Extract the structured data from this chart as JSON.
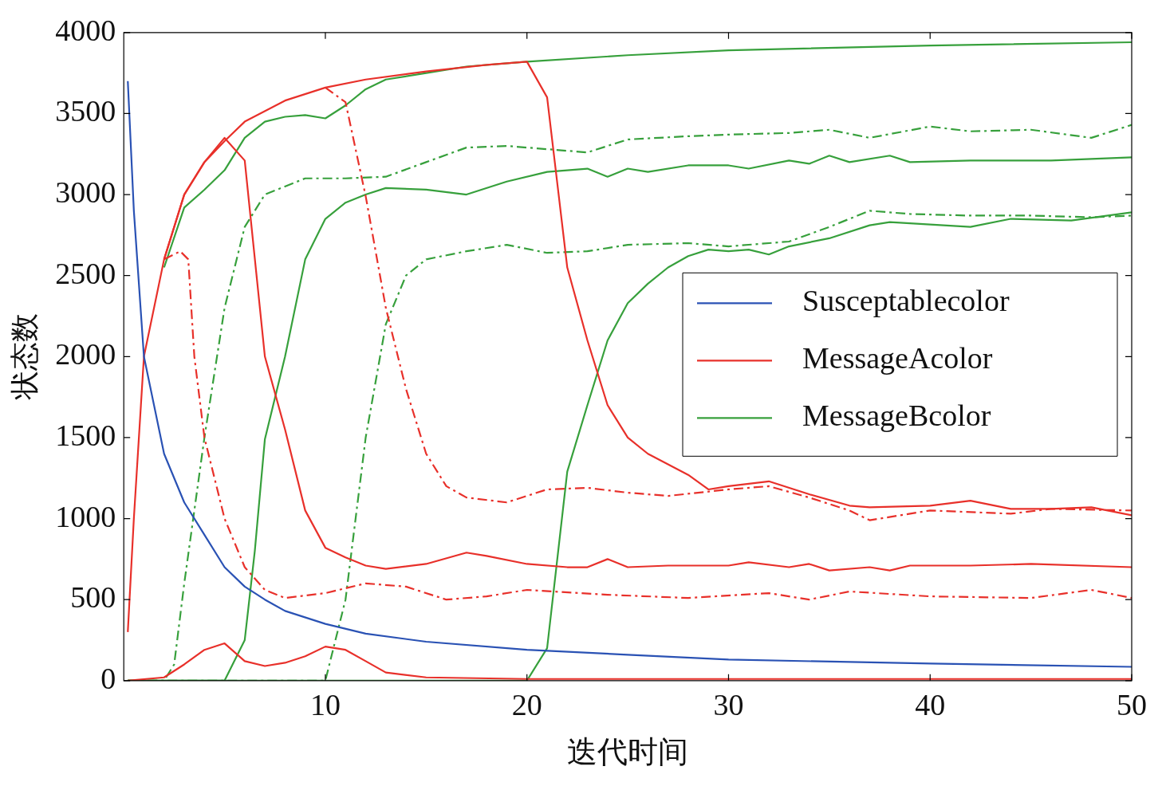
{
  "chart_data": {
    "type": "line",
    "xlabel": "迭代时间",
    "ylabel": "状态数",
    "xlim": [
      0,
      50
    ],
    "xticks": [
      10,
      20,
      30,
      40,
      50
    ],
    "ylim": [
      0,
      4000
    ],
    "yticks": [
      0,
      500,
      1000,
      1500,
      2000,
      2500,
      3000,
      3500,
      4000
    ],
    "grid": false,
    "legend": "right",
    "marker": "none",
    "series": [
      {
        "name": "Susceptablecolor",
        "color": "#2a52b4",
        "line_style": "solid",
        "x": [
          0.2,
          0.5,
          1,
          2,
          3,
          4,
          5,
          6,
          7,
          8,
          10,
          12,
          15,
          20,
          25,
          30,
          40,
          50
        ],
        "values": [
          3700,
          2900,
          2000,
          1400,
          1100,
          900,
          700,
          580,
          500,
          430,
          350,
          290,
          240,
          190,
          160,
          130,
          105,
          85
        ]
      },
      {
        "name": "MessageAcolor",
        "color": "#e8302a",
        "line_style": "solid",
        "x": [
          0.2,
          0.5,
          1,
          2,
          3,
          4,
          5,
          6,
          8,
          10,
          12,
          15,
          18,
          20,
          21,
          22,
          23,
          24,
          25,
          26,
          28,
          29,
          30,
          32,
          34,
          36,
          37,
          40,
          42,
          44,
          46,
          48,
          50
        ],
        "values": [
          300,
          1000,
          2000,
          2600,
          3000,
          3200,
          3330,
          3450,
          3580,
          3660,
          3710,
          3760,
          3800,
          3820,
          3600,
          2550,
          2100,
          1700,
          1500,
          1400,
          1270,
          1180,
          1200,
          1230,
          1150,
          1080,
          1070,
          1080,
          1110,
          1060,
          1060,
          1070,
          1020
        ]
      },
      {
        "color": "#e8302a",
        "line_style": "solid",
        "x": [
          2,
          3,
          4,
          5,
          6,
          7,
          8,
          9,
          10,
          11,
          12,
          13,
          15,
          17,
          18,
          20,
          22,
          23,
          24,
          25,
          27,
          30,
          31,
          33,
          34,
          35,
          37,
          38,
          39,
          42,
          45,
          50
        ],
        "values": [
          2600,
          3000,
          3200,
          3350,
          3210,
          2000,
          1550,
          1050,
          820,
          760,
          710,
          690,
          720,
          790,
          770,
          720,
          700,
          700,
          750,
          700,
          710,
          710,
          730,
          700,
          720,
          680,
          700,
          680,
          710,
          710,
          720,
          700
        ]
      },
      {
        "color": "#e8302a",
        "line_style": "solid",
        "x": [
          0.2,
          2,
          3,
          4,
          5,
          6,
          7,
          8,
          9,
          10,
          11,
          12,
          13,
          15,
          20,
          50
        ],
        "values": [
          0,
          20,
          100,
          190,
          230,
          120,
          90,
          110,
          150,
          210,
          190,
          120,
          50,
          20,
          10,
          10
        ]
      },
      {
        "color": "#e8302a",
        "line_style": "dashed",
        "x": [
          2,
          2.8,
          3.2,
          3.5,
          4,
          5,
          6,
          7,
          8,
          10,
          12,
          14,
          16,
          18,
          20,
          24,
          28,
          32,
          34,
          36,
          40,
          45,
          48,
          50
        ],
        "values": [
          2600,
          2650,
          2600,
          2000,
          1500,
          1000,
          700,
          560,
          510,
          540,
          600,
          580,
          500,
          520,
          560,
          530,
          510,
          540,
          500,
          550,
          520,
          510,
          560,
          510
        ]
      },
      {
        "color": "#e8302a",
        "line_style": "dashed",
        "x": [
          10,
          11,
          12,
          13,
          14,
          15,
          16,
          17,
          19,
          21,
          23,
          25,
          27,
          30,
          32,
          34,
          36,
          37,
          40,
          44,
          46,
          50
        ],
        "values": [
          3660,
          3570,
          2990,
          2300,
          1800,
          1400,
          1200,
          1130,
          1100,
          1180,
          1190,
          1160,
          1140,
          1180,
          1200,
          1130,
          1050,
          990,
          1050,
          1030,
          1060,
          1050
        ]
      },
      {
        "name": "MessageBcolor",
        "color": "#37a03c",
        "line_style": "solid",
        "x": [
          2,
          3,
          4,
          5,
          6,
          7,
          8,
          9,
          10,
          11,
          12,
          13,
          15,
          17,
          20,
          25,
          30,
          40,
          50
        ],
        "values": [
          2550,
          2920,
          3030,
          3150,
          3350,
          3450,
          3480,
          3490,
          3470,
          3550,
          3650,
          3710,
          3750,
          3790,
          3820,
          3860,
          3890,
          3920,
          3940
        ]
      },
      {
        "color": "#37a03c",
        "line_style": "solid",
        "x": [
          0.2,
          5,
          6,
          6.5,
          7,
          8,
          9,
          10,
          11,
          12,
          13,
          15,
          17,
          19,
          21,
          23,
          24,
          25,
          26,
          28,
          30,
          31,
          33,
          34,
          35,
          36,
          38,
          39,
          42,
          46,
          50
        ],
        "values": [
          0,
          0,
          250,
          800,
          1490,
          2000,
          2600,
          2850,
          2950,
          3000,
          3040,
          3030,
          3000,
          3080,
          3140,
          3160,
          3110,
          3160,
          3140,
          3180,
          3180,
          3160,
          3210,
          3190,
          3240,
          3200,
          3240,
          3200,
          3210,
          3210,
          3230
        ]
      },
      {
        "color": "#37a03c",
        "line_style": "solid",
        "x": [
          0.2,
          20,
          21,
          22,
          23,
          24,
          25,
          26,
          27,
          28,
          29,
          30,
          31,
          32,
          33,
          35,
          37,
          38,
          42,
          44,
          47,
          50
        ],
        "values": [
          0,
          0,
          200,
          1290,
          1700,
          2100,
          2330,
          2450,
          2550,
          2620,
          2660,
          2650,
          2660,
          2630,
          2680,
          2730,
          2810,
          2830,
          2800,
          2850,
          2840,
          2890
        ]
      },
      {
        "color": "#37a03c",
        "line_style": "dashed",
        "x": [
          0.2,
          2,
          2.5,
          3,
          4,
          5,
          6,
          7,
          9,
          11,
          13,
          15,
          17,
          19,
          21,
          23,
          25,
          28,
          30,
          33,
          35,
          37,
          40,
          42,
          45,
          48,
          50
        ],
        "values": [
          0,
          0,
          100,
          600,
          1500,
          2300,
          2800,
          3000,
          3100,
          3100,
          3110,
          3200,
          3290,
          3300,
          3280,
          3260,
          3340,
          3360,
          3370,
          3380,
          3400,
          3350,
          3420,
          3390,
          3400,
          3350,
          3430
        ]
      },
      {
        "color": "#37a03c",
        "line_style": "dashed",
        "x": [
          0.2,
          10,
          11,
          12,
          13,
          14,
          15,
          17,
          19,
          21,
          23,
          25,
          28,
          30,
          33,
          35,
          37,
          39,
          42,
          45,
          48,
          50
        ],
        "values": [
          0,
          0,
          500,
          1500,
          2200,
          2500,
          2600,
          2650,
          2690,
          2640,
          2650,
          2690,
          2700,
          2680,
          2710,
          2800,
          2900,
          2880,
          2870,
          2870,
          2860,
          2870
        ]
      }
    ]
  }
}
